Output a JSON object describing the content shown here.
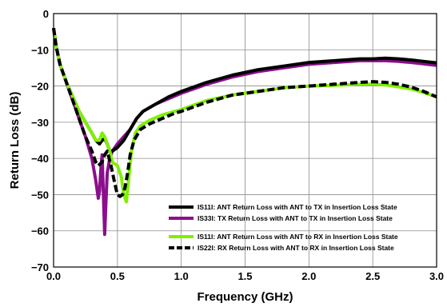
{
  "chart_data": {
    "type": "line",
    "title": "",
    "xlabel": "Frequency (GHz)",
    "ylabel": "Return Loss (dB)",
    "xlim": [
      0.0,
      3.0
    ],
    "ylim": [
      -70,
      0
    ],
    "xticks": [
      "0.0",
      "0.5",
      "1.0",
      "1.5",
      "2.0",
      "2.5",
      "3.0"
    ],
    "yticks": [
      "0",
      "−10",
      "−20",
      "−30",
      "−40",
      "−50",
      "−60",
      "−70"
    ],
    "xtick_values": [
      0.0,
      0.5,
      1.0,
      1.5,
      2.0,
      2.5,
      3.0
    ],
    "ytick_values": [
      0,
      -10,
      -20,
      -30,
      -40,
      -50,
      -60,
      -70
    ],
    "grid": true,
    "legend_position": "bottom-right",
    "series": [
      {
        "name": "IS11I: ANT Return Loss with ANT to TX in Insertion Loss State",
        "color": "#000000",
        "style": "solid",
        "x": [
          0.0,
          0.02,
          0.05,
          0.1,
          0.15,
          0.2,
          0.25,
          0.3,
          0.33,
          0.36,
          0.38,
          0.4,
          0.42,
          0.44,
          0.46,
          0.5,
          0.55,
          0.6,
          0.65,
          0.7,
          0.8,
          0.9,
          1.0,
          1.2,
          1.4,
          1.6,
          1.8,
          2.0,
          2.2,
          2.4,
          2.5,
          2.6,
          2.7,
          2.8,
          2.9,
          3.0
        ],
        "y": [
          -4,
          -9,
          -14,
          -19,
          -23,
          -27,
          -30,
          -33,
          -35,
          -36,
          -35,
          -34.5,
          -36,
          -38,
          -38,
          -37,
          -35,
          -32,
          -29,
          -27,
          -25,
          -23,
          -21.5,
          -19,
          -17,
          -15.5,
          -14.5,
          -13.5,
          -13,
          -12.5,
          -12.5,
          -12.3,
          -12.5,
          -12.8,
          -13.2,
          -13.6
        ]
      },
      {
        "name": "IS33I: TX Return Loss with ANT to TX in Insertion Loss State",
        "color": "#8b0f8c",
        "style": "solid",
        "x": [
          0.0,
          0.02,
          0.05,
          0.1,
          0.15,
          0.2,
          0.25,
          0.3,
          0.33,
          0.35,
          0.36,
          0.37,
          0.38,
          0.39,
          0.4,
          0.41,
          0.42,
          0.44,
          0.46,
          0.5,
          0.55,
          0.6,
          0.65,
          0.7,
          0.8,
          0.9,
          1.0,
          1.2,
          1.4,
          1.6,
          1.8,
          2.0,
          2.2,
          2.4,
          2.5,
          2.6,
          2.7,
          2.8,
          2.9,
          3.0
        ],
        "y": [
          -4,
          -9,
          -14,
          -19,
          -24,
          -29,
          -34,
          -40,
          -46,
          -51,
          -49,
          -43,
          -39,
          -50,
          -61,
          -52,
          -44,
          -40,
          -38,
          -36,
          -34,
          -32,
          -29,
          -27,
          -25,
          -23.5,
          -22,
          -19.5,
          -17.5,
          -16,
          -15,
          -14,
          -13.5,
          -13,
          -13,
          -13,
          -13.2,
          -13.5,
          -13.9,
          -14.3
        ]
      },
      {
        "name": "IS11I: ANT Return Loss with ANT to RX in Insertion Loss State",
        "color": "#7ff000",
        "style": "solid",
        "x": [
          0.0,
          0.02,
          0.05,
          0.1,
          0.15,
          0.2,
          0.25,
          0.3,
          0.33,
          0.36,
          0.38,
          0.4,
          0.42,
          0.44,
          0.46,
          0.5,
          0.53,
          0.55,
          0.57,
          0.59,
          0.61,
          0.64,
          0.68,
          0.75,
          0.85,
          0.95,
          1.0,
          1.2,
          1.4,
          1.6,
          1.8,
          2.0,
          2.2,
          2.4,
          2.5,
          2.6,
          2.7,
          2.8,
          2.9,
          3.0
        ],
        "y": [
          -4,
          -9,
          -14,
          -19,
          -23,
          -27,
          -30,
          -33,
          -35,
          -35,
          -33,
          -34,
          -36,
          -38,
          -41,
          -42,
          -45,
          -50,
          -52,
          -45,
          -38,
          -33,
          -31,
          -29.5,
          -28,
          -27,
          -26.5,
          -24,
          -22.5,
          -21.5,
          -20.5,
          -20,
          -19.8,
          -19.5,
          -19.5,
          -19.7,
          -20.2,
          -20.8,
          -21.8,
          -23
        ]
      },
      {
        "name": "IS22I: RX Return Loss with ANT to RX in Insertion Loss State",
        "color": "#000000",
        "style": "dashed",
        "x": [
          0.0,
          0.02,
          0.05,
          0.1,
          0.15,
          0.2,
          0.25,
          0.3,
          0.33,
          0.35,
          0.38,
          0.4,
          0.42,
          0.45,
          0.48,
          0.5,
          0.52,
          0.54,
          0.56,
          0.58,
          0.6,
          0.63,
          0.68,
          0.75,
          0.85,
          0.95,
          1.0,
          1.2,
          1.4,
          1.6,
          1.8,
          2.0,
          2.2,
          2.4,
          2.5,
          2.6,
          2.7,
          2.8,
          2.9,
          3.0
        ],
        "y": [
          -4,
          -9,
          -14,
          -19,
          -24,
          -29,
          -34,
          -38,
          -41,
          -42,
          -41,
          -39,
          -38,
          -42,
          -47,
          -50,
          -50.5,
          -50,
          -48,
          -44,
          -39,
          -35,
          -32,
          -30.5,
          -29,
          -27.5,
          -27,
          -24.5,
          -22.5,
          -21.5,
          -20.5,
          -20,
          -19.5,
          -19,
          -18.8,
          -19,
          -19.5,
          -20.3,
          -21.5,
          -23
        ]
      }
    ]
  }
}
